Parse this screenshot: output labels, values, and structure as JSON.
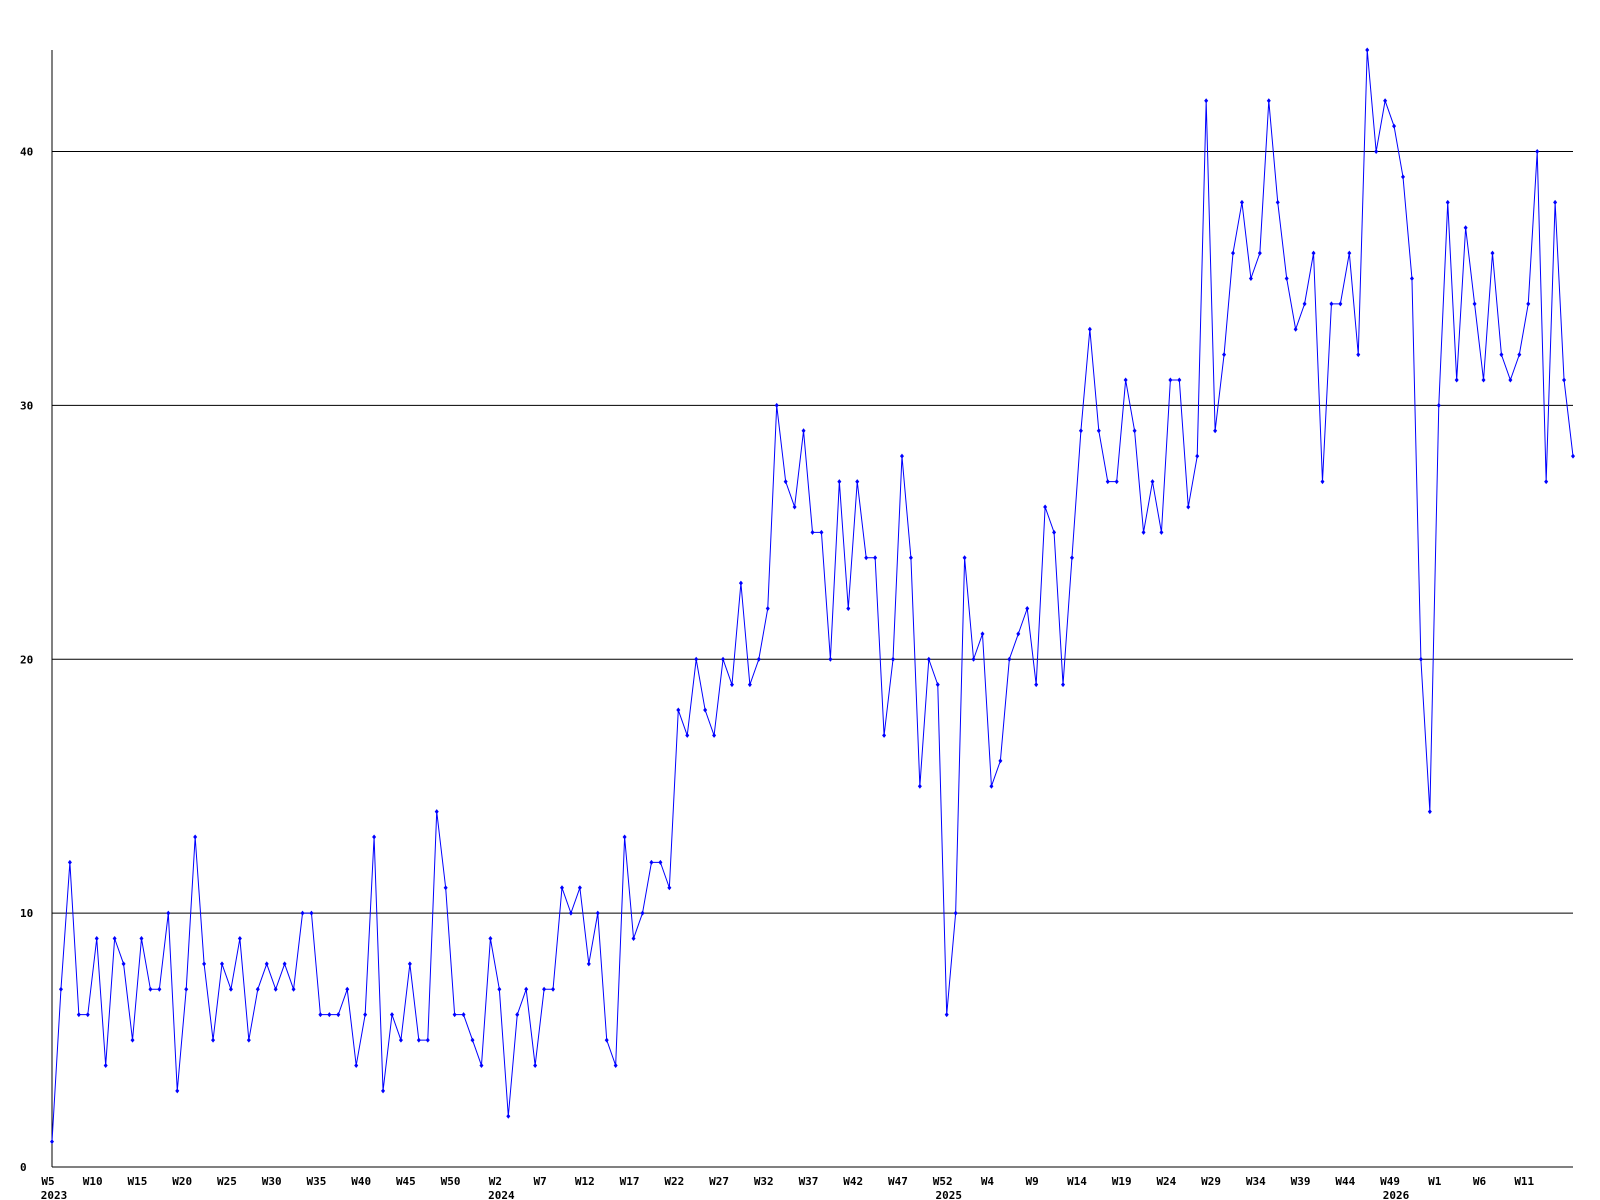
{
  "chart_data": {
    "type": "line",
    "categories": [
      "W5",
      null,
      null,
      null,
      null,
      "W10",
      null,
      null,
      null,
      null,
      "W15",
      null,
      null,
      null,
      null,
      "W20",
      null,
      null,
      null,
      null,
      "W25",
      null,
      null,
      null,
      null,
      "W30",
      null,
      null,
      null,
      null,
      "W35",
      null,
      null,
      null,
      null,
      "W40",
      null,
      null,
      null,
      null,
      "W45",
      null,
      null,
      null,
      null,
      "W50",
      null,
      null,
      null,
      null,
      "W2",
      null,
      null,
      null,
      null,
      "W7",
      null,
      null,
      null,
      null,
      "W12",
      null,
      null,
      null,
      null,
      "W17",
      null,
      null,
      null,
      null,
      "W22",
      null,
      null,
      null,
      null,
      "W27",
      null,
      null,
      null,
      null,
      "W32",
      null,
      null,
      null,
      null,
      "W37",
      null,
      null,
      null,
      null,
      "W42",
      null,
      null,
      null,
      null,
      "W47",
      null,
      null,
      null,
      null,
      "W52",
      null,
      null,
      null,
      null,
      "W4",
      null,
      null,
      null,
      null,
      "W9",
      null,
      null,
      null,
      null,
      "W14",
      null,
      null,
      null,
      null,
      "W19",
      null,
      null,
      null,
      null,
      "W24",
      null,
      null,
      null,
      null,
      "W29",
      null,
      null,
      null,
      null,
      "W34",
      null,
      null,
      null,
      null,
      "W39",
      null,
      null,
      null,
      null,
      "W44",
      null,
      null,
      null,
      null,
      "W49",
      null,
      null,
      null,
      null,
      "W1",
      null,
      null,
      null,
      null,
      "W6",
      null,
      null,
      null,
      null,
      "W11",
      null,
      null,
      null,
      null,
      null
    ],
    "years": [
      "2023",
      null,
      null,
      null,
      null,
      null,
      null,
      null,
      null,
      null,
      null,
      null,
      null,
      null,
      null,
      null,
      null,
      null,
      null,
      null,
      null,
      null,
      null,
      null,
      null,
      null,
      null,
      null,
      null,
      null,
      null,
      null,
      null,
      null,
      null,
      null,
      null,
      null,
      null,
      null,
      null,
      null,
      null,
      null,
      null,
      null,
      null,
      null,
      null,
      null,
      "2024",
      null,
      null,
      null,
      null,
      null,
      null,
      null,
      null,
      null,
      null,
      null,
      null,
      null,
      null,
      null,
      null,
      null,
      null,
      null,
      null,
      null,
      null,
      null,
      null,
      null,
      null,
      null,
      null,
      null,
      null,
      null,
      null,
      null,
      null,
      null,
      null,
      null,
      null,
      null,
      null,
      null,
      null,
      null,
      null,
      null,
      null,
      null,
      null,
      null,
      "2025",
      null,
      null,
      null,
      null,
      null,
      null,
      null,
      null,
      null,
      null,
      null,
      null,
      null,
      null,
      null,
      null,
      null,
      null,
      null,
      null,
      null,
      null,
      null,
      null,
      null,
      null,
      null,
      null,
      null,
      null,
      null,
      null,
      null,
      null,
      null,
      null,
      null,
      null,
      null,
      null,
      null,
      null,
      null,
      null,
      null,
      null,
      null,
      null,
      null,
      "2026",
      null,
      null,
      null,
      null,
      null,
      null,
      null,
      null,
      null,
      null,
      null,
      null,
      null,
      null,
      null,
      null,
      null,
      null,
      null,
      null
    ],
    "series": [
      {
        "color": "#0000ff",
        "values": [
          1,
          7,
          12,
          6,
          6,
          9,
          4,
          9,
          8,
          5,
          9,
          7,
          7,
          10,
          3,
          7,
          13,
          8,
          5,
          8,
          7,
          9,
          5,
          7,
          8,
          7,
          8,
          7,
          10,
          10,
          6,
          6,
          6,
          7,
          4,
          6,
          13,
          3,
          6,
          5,
          8,
          5,
          5,
          14,
          11,
          6,
          6,
          5,
          4,
          9,
          7,
          2,
          6,
          7,
          4,
          7,
          7,
          11,
          10,
          11,
          8,
          10,
          5,
          4,
          13,
          9,
          10,
          12,
          12,
          11,
          18,
          17,
          20,
          18,
          17,
          20,
          19,
          23,
          19,
          20,
          22,
          30,
          27,
          26,
          29,
          25,
          25,
          20,
          27,
          22,
          27,
          24,
          24,
          17,
          20,
          28,
          24,
          15,
          20,
          19,
          6,
          10,
          24,
          20,
          21,
          15,
          16,
          20,
          21,
          22,
          19,
          26,
          25,
          19,
          24,
          29,
          33,
          29,
          27,
          27,
          31,
          29,
          25,
          27,
          25,
          31,
          31,
          26,
          28,
          42,
          29,
          32,
          36,
          38,
          35,
          36,
          42,
          38,
          35,
          33,
          34,
          36,
          27,
          34,
          34,
          36,
          32,
          44,
          40,
          42,
          41,
          39,
          35,
          20,
          14,
          30,
          38,
          31,
          37,
          34,
          31,
          36,
          32,
          31,
          32,
          34,
          40,
          27,
          38,
          31,
          28
        ]
      }
    ],
    "ylim": [
      0,
      44
    ],
    "yticks": [
      0,
      10,
      20,
      30,
      40
    ],
    "grid": true
  }
}
